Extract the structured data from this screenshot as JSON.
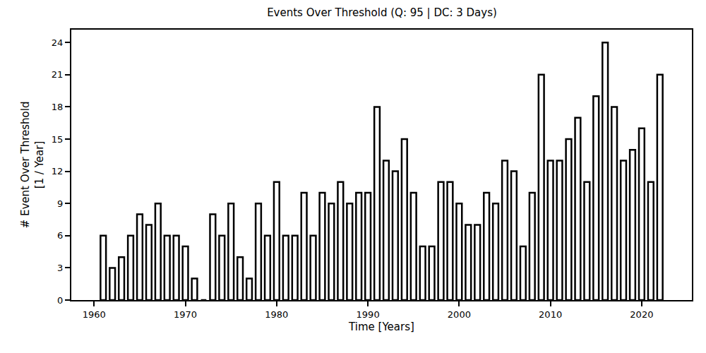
{
  "chart_data": {
    "type": "bar",
    "title": "Events Over Threshold (Q: 95 | DC: 3 Days)",
    "x_label": "Time [Years]",
    "y_label": "# Event Over Threshold\n[1 / Year]",
    "x": [
      1961,
      1962,
      1963,
      1964,
      1965,
      1966,
      1967,
      1968,
      1969,
      1970,
      1971,
      1972,
      1973,
      1974,
      1975,
      1976,
      1977,
      1978,
      1979,
      1980,
      1981,
      1982,
      1983,
      1984,
      1985,
      1986,
      1987,
      1988,
      1989,
      1990,
      1991,
      1992,
      1993,
      1994,
      1995,
      1996,
      1997,
      1998,
      1999,
      2000,
      2001,
      2002,
      2003,
      2004,
      2005,
      2006,
      2007,
      2008,
      2009,
      2010,
      2011,
      2012,
      2013,
      2014,
      2015,
      2016,
      2017,
      2018,
      2019,
      2020,
      2021,
      2022
    ],
    "values": [
      6,
      3,
      4,
      6,
      8,
      7,
      9,
      6,
      6,
      5,
      2,
      0,
      8,
      6,
      9,
      4,
      2,
      9,
      6,
      11,
      6,
      6,
      10,
      6,
      10,
      9,
      11,
      9,
      10,
      10,
      18,
      13,
      12,
      15,
      10,
      5,
      5,
      11,
      11,
      9,
      7,
      7,
      10,
      9,
      13,
      12,
      5,
      10,
      21,
      13,
      13,
      15,
      17,
      11,
      19,
      24,
      18,
      13,
      14,
      16,
      11,
      21
    ],
    "color": "#ffffff",
    "xlim": [
      1957.5,
      2025.5
    ],
    "xticks": [
      1960,
      1970,
      1980,
      1990,
      2000,
      2010,
      2020
    ],
    "ylim": [
      0,
      25.2
    ],
    "yticks": [
      0,
      3,
      6,
      9,
      12,
      15,
      18,
      21,
      24
    ],
    "grid": false
  }
}
